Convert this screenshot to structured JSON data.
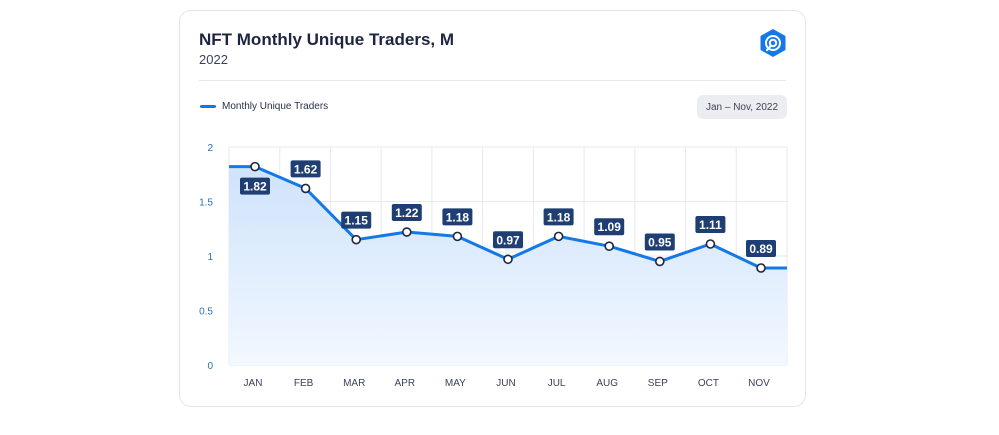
{
  "card": {
    "title": "NFT Monthly Unique Traders, M",
    "subtitle": "2022",
    "logo_icon": "dappradar-logo-icon",
    "watermark": "DappRadar",
    "date_range": "Jan – Nov, 2022"
  },
  "colors": {
    "line": "#1479e6",
    "area_top": "#cfe3fb",
    "area_bottom": "#f2f8ff",
    "label_bg": "#1f3f74",
    "grid": "#e6e9ef"
  },
  "chart_data": {
    "type": "area",
    "categories": [
      "JAN",
      "FEB",
      "MAR",
      "APR",
      "MAY",
      "JUN",
      "JUL",
      "AUG",
      "SEP",
      "OCT",
      "NOV"
    ],
    "series": [
      {
        "name": "Monthly Unique Traders",
        "values": [
          1.82,
          1.62,
          1.15,
          1.22,
          1.18,
          0.97,
          1.18,
          1.09,
          0.95,
          1.11,
          0.89
        ],
        "labels": [
          "1.82",
          "1.62",
          "1.15",
          "1.22",
          "1.18",
          "0.97",
          "1.18",
          "1.09",
          "0.95",
          "1.11",
          "0.89"
        ]
      }
    ],
    "yticks": [
      "0",
      "0.5",
      "1",
      "1.5",
      "2"
    ],
    "ylim": [
      0,
      2
    ],
    "grid": true,
    "legend": "top-left"
  }
}
